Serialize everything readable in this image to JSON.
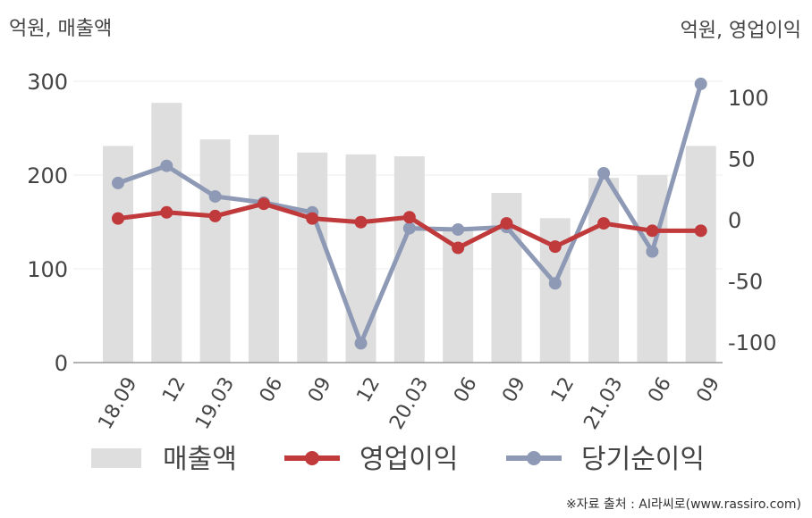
{
  "units": {
    "left": "억원, 매출액",
    "right": "억원, 영업이익"
  },
  "source": "※자료 출처 : AI라씨로(www.rassiro.com)",
  "colors": {
    "bars": "#dedede",
    "operating": "#c0393b",
    "net": "#8e9ab5",
    "axis": "#9a9a9a",
    "grid": "#ececec",
    "text": "#444444"
  },
  "chart_data": {
    "type": "bar",
    "categories": [
      "18.09",
      "12",
      "19.03",
      "06",
      "09",
      "12",
      "20.03",
      "06",
      "09",
      "12",
      "21.03",
      "06",
      "09"
    ],
    "left_axis": {
      "ylim": [
        0,
        300
      ],
      "ticks": [
        0,
        100,
        200,
        300
      ]
    },
    "right_axis": {
      "ylim": [
        -118,
        118
      ],
      "ticks": [
        -100,
        -50,
        0,
        50,
        100
      ]
    },
    "grid": true,
    "legend_position": "bottom",
    "series": [
      {
        "name": "매출액",
        "type": "bar",
        "axis": "left",
        "color": "#dedede",
        "values": [
          231,
          277,
          238,
          243,
          224,
          222,
          220,
          144,
          181,
          154,
          197,
          200,
          231
        ]
      },
      {
        "name": "영업이익",
        "type": "line",
        "axis": "right",
        "color": "#c0393b",
        "values": [
          1,
          6,
          3,
          13,
          1,
          -2,
          2,
          -23,
          -3,
          -22,
          -3,
          -9,
          -9
        ]
      },
      {
        "name": "당기순이익",
        "type": "line",
        "axis": "right",
        "color": "#8e9ab5",
        "values": [
          30,
          44,
          19,
          14,
          6,
          -101,
          -7,
          -8,
          -6,
          -52,
          38,
          -26,
          111
        ]
      }
    ]
  }
}
